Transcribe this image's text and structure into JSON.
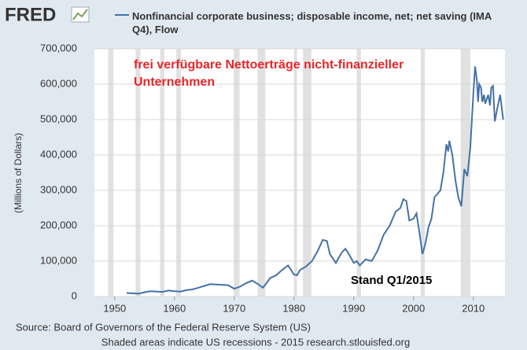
{
  "chart_data": {
    "type": "line",
    "logo": "FRED",
    "y_label": "(Millions of Dollars)",
    "annotation": "frei verfügbare Nettoerträge nicht-finanzieller Unternehmen",
    "annotation_color": "#e8262b",
    "note": "Stand Q1/2015",
    "source": "Source: Board of Governors of the Federal Reserve System (US)",
    "footer": "Shaded areas indicate US recessions - 2015 research.stlouisfed.org",
    "xlim": [
      1946.6,
      2015.3
    ],
    "xticks": [
      1950,
      1960,
      1970,
      1980,
      1990,
      2000,
      2010
    ],
    "ylim": [
      0,
      700000
    ],
    "yticks": [
      0,
      {
        "value": 100000,
        "label": "100,000"
      },
      {
        "value": 200000,
        "label": "200,000"
      },
      {
        "value": 300000,
        "label": "300,000"
      },
      {
        "value": 400000,
        "label": "400,000"
      },
      {
        "value": 500000,
        "label": "500,000"
      },
      {
        "value": 600000,
        "label": "600,000"
      },
      {
        "value": 700000,
        "label": "700,000"
      }
    ],
    "grid": true,
    "recession_color": "#e1e1e1",
    "recessions": [
      [
        1948.9,
        1949.8
      ],
      [
        1953.5,
        1954.3
      ],
      [
        1957.6,
        1958.3
      ],
      [
        1960.3,
        1961.1
      ],
      [
        1969.9,
        1970.9
      ],
      [
        1973.9,
        1975.2
      ],
      [
        1980.0,
        1980.5
      ],
      [
        1981.5,
        1982.9
      ],
      [
        1990.5,
        1991.2
      ],
      [
        2001.2,
        2001.9
      ],
      [
        2007.9,
        2009.5
      ]
    ],
    "series": [
      {
        "name": "Nonfinancial corporate business; disposable income, net; net saving (IMA Q4), Flow",
        "color": "#4572a7",
        "x": [
          1952,
          1954,
          1955,
          1956,
          1958,
          1959,
          1960,
          1961,
          1962,
          1963,
          1964,
          1965,
          1966,
          1967,
          1968,
          1969,
          1970,
          1971,
          1972,
          1973,
          1974,
          1974.8,
          1975.5,
          1976,
          1977,
          1978,
          1979,
          1980,
          1980.5,
          1981,
          1982,
          1983,
          1984,
          1984.8,
          1985.5,
          1986,
          1987,
          1988,
          1988.6,
          1989,
          1990,
          1990.5,
          1991,
          1992,
          1993,
          1994,
          1995,
          1996,
          1997,
          1997.8,
          1998.3,
          1998.8,
          1999.3,
          2000,
          2000.5,
          2001,
          2001.5,
          2002,
          2002.5,
          2003,
          2003.5,
          2004,
          2004.5,
          2005,
          2005.5,
          2005.8,
          2006,
          2006.5,
          2007,
          2007.5,
          2008,
          2008.5,
          2009,
          2009.5,
          2010,
          2010.3,
          2010.6,
          2010.8,
          2011,
          2011.3,
          2011.5,
          2011.8,
          2012,
          2012.5,
          2012.8,
          2013,
          2013.3,
          2013.6,
          2014,
          2014.5,
          2015
        ],
        "values": [
          10000,
          8000,
          12000,
          15000,
          13000,
          17000,
          15000,
          14000,
          18000,
          20000,
          25000,
          30000,
          35000,
          34000,
          33000,
          32000,
          22000,
          28000,
          38000,
          45000,
          35000,
          25000,
          40000,
          52000,
          60000,
          75000,
          88000,
          62000,
          60000,
          75000,
          85000,
          100000,
          130000,
          160000,
          157000,
          120000,
          95000,
          125000,
          135000,
          125000,
          95000,
          100000,
          88000,
          105000,
          100000,
          130000,
          175000,
          200000,
          240000,
          250000,
          275000,
          270000,
          215000,
          220000,
          235000,
          180000,
          120000,
          150000,
          195000,
          220000,
          280000,
          290000,
          300000,
          350000,
          430000,
          410000,
          440000,
          400000,
          330000,
          280000,
          255000,
          360000,
          340000,
          420000,
          570000,
          650000,
          610000,
          550000,
          600000,
          590000,
          550000,
          570000,
          545000,
          570000,
          540000,
          590000,
          595000,
          495000,
          530000,
          570000,
          500000
        ]
      }
    ]
  }
}
